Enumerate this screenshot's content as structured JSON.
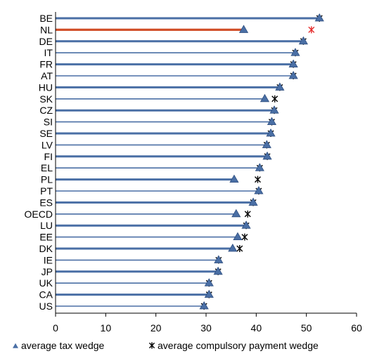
{
  "chart_data": {
    "type": "bar",
    "orientation": "horizontal",
    "title": "",
    "xlabel": "",
    "ylabel": "",
    "xlim": [
      0,
      60
    ],
    "xticks": [
      0,
      10,
      20,
      30,
      40,
      50,
      60
    ],
    "grid": false,
    "legend_placement": "bottom",
    "categories": [
      "BE",
      "NL",
      "DE",
      "IT",
      "FR",
      "AT",
      "HU",
      "SK",
      "CZ",
      "SI",
      "SE",
      "LV",
      "FI",
      "EL",
      "PL",
      "PT",
      "ES",
      "OECD",
      "LU",
      "EE",
      "DK",
      "IE",
      "JP",
      "UK",
      "CA",
      "US"
    ],
    "series": [
      {
        "name": "average tax wedge",
        "marker": "triangle",
        "values": [
          52.6,
          37.5,
          49.4,
          47.8,
          47.4,
          47.4,
          44.7,
          41.7,
          43.6,
          43.1,
          42.9,
          42.1,
          42.2,
          40.7,
          35.6,
          40.5,
          39.4,
          36.0,
          38.0,
          36.3,
          35.3,
          32.5,
          32.4,
          30.6,
          30.6,
          29.6
        ]
      },
      {
        "name": "average compulsory payment wedge",
        "marker": "x-star",
        "values": [
          52.6,
          51.0,
          49.4,
          47.8,
          47.4,
          47.4,
          44.7,
          43.7,
          43.6,
          43.1,
          42.9,
          42.1,
          42.2,
          40.7,
          40.3,
          40.5,
          39.4,
          38.3,
          38.0,
          37.7,
          36.7,
          32.5,
          32.4,
          30.6,
          30.6,
          29.6
        ]
      }
    ],
    "highlight": "NL",
    "colors": {
      "bar": "#4a6fa5",
      "bar_highlight": "#d2502a",
      "triangle": "#4a6fa5",
      "star": "#000000",
      "star_highlight": "#e52b2b",
      "axis": "#000000"
    }
  }
}
